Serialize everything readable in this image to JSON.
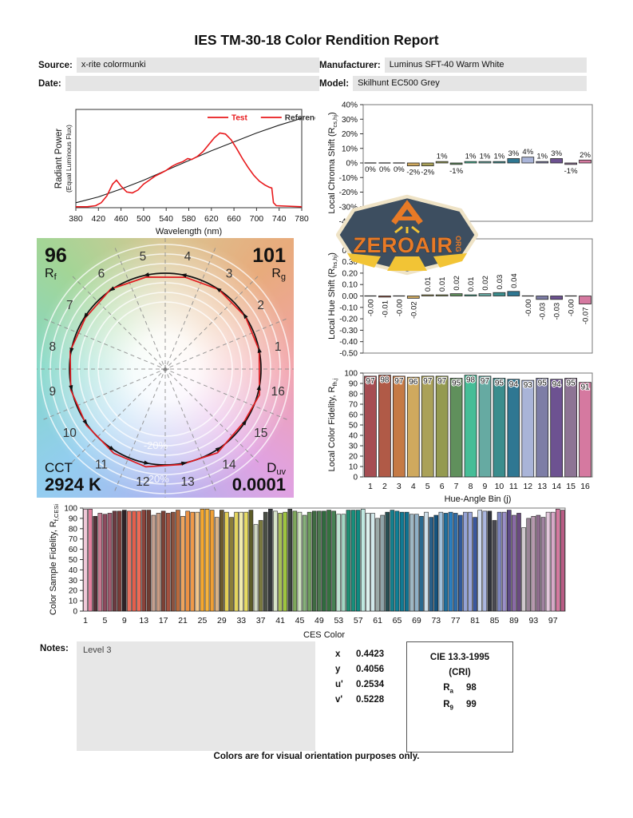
{
  "title": "IES TM-30-18 Color Rendition Report",
  "header": {
    "source_label": "Source:",
    "source_value": "x-rite colormunki",
    "date_label": "Date:",
    "date_value": "",
    "manufacturer_label": "Manufacturer:",
    "manufacturer_value": "Luminus SFT-40 Warm White",
    "model_label": "Model:",
    "model_value": "Skilhunt EC500 Grey"
  },
  "notes": {
    "label": "Notes:",
    "value": "Level 3"
  },
  "chromaticity": {
    "rows": [
      {
        "label": "x",
        "value": "0.4423"
      },
      {
        "label": "y",
        "value": "0.4056"
      },
      {
        "label": "u'",
        "value": "0.2534"
      },
      {
        "label": "v'",
        "value": "0.5228"
      }
    ]
  },
  "cri_box": {
    "title": "CIE 13.3-1995",
    "subtitle": "(CRI)",
    "rows": [
      {
        "label": "R",
        "sub": "a",
        "value": "98"
      },
      {
        "label": "R",
        "sub": "9",
        "value": "99"
      }
    ]
  },
  "footer": "Colors are for visual orientation purposes only.",
  "logo": {
    "text": "ZEROAIR",
    "suffix": "ORG",
    "colors": {
      "badge": "#3d4e60",
      "border": "#efe3c6",
      "orange": "#e87a26",
      "yellow": "#f2c435"
    }
  },
  "palette": {
    "bin_colors": [
      "#a64d52",
      "#b05a47",
      "#c57a45",
      "#cfa95e",
      "#aaa158",
      "#949a50",
      "#60905c",
      "#46bd97",
      "#66aaa2",
      "#3b8d8d",
      "#2f7792",
      "#a9b4d8",
      "#7d7da6",
      "#6d5291",
      "#8d7494",
      "#d579a0"
    ]
  },
  "chart_data": [
    {
      "id": "spd",
      "type": "line",
      "xlabel": "Wavelength (nm)",
      "ylabel_line1": "Radiant Power",
      "ylabel_line2": "(Equal Luminous Flux)",
      "xlim": [
        380,
        780
      ],
      "xticks": [
        380,
        420,
        460,
        500,
        540,
        580,
        620,
        660,
        700,
        740,
        780
      ],
      "legend": [
        {
          "label": "Test",
          "color": "#e8191c",
          "text_color": "#e8191c"
        },
        {
          "label": "Reference",
          "color": "#e8191c",
          "text_color": "#333333"
        }
      ],
      "series": [
        {
          "name": "Reference",
          "color": "#1a1a1a",
          "x": [
            380,
            420,
            460,
            500,
            540,
            580,
            620,
            660,
            700,
            740,
            780
          ],
          "y": [
            0.05,
            0.11,
            0.19,
            0.28,
            0.38,
            0.48,
            0.58,
            0.67,
            0.76,
            0.84,
            0.91
          ]
        },
        {
          "name": "Test",
          "color": "#e8191c",
          "x": [
            380,
            400,
            415,
            425,
            435,
            445,
            452,
            460,
            470,
            480,
            490,
            500,
            510,
            520,
            530,
            540,
            550,
            560,
            570,
            578,
            585,
            595,
            605,
            615,
            625,
            635,
            645,
            655,
            665,
            675,
            685,
            695,
            705,
            715,
            722,
            727,
            730,
            735,
            780
          ],
          "y": [
            0.01,
            0.01,
            0.02,
            0.05,
            0.12,
            0.24,
            0.28,
            0.22,
            0.16,
            0.15,
            0.18,
            0.24,
            0.28,
            0.32,
            0.35,
            0.38,
            0.42,
            0.45,
            0.47,
            0.5,
            0.49,
            0.52,
            0.57,
            0.64,
            0.71,
            0.76,
            0.75,
            0.69,
            0.6,
            0.5,
            0.41,
            0.33,
            0.27,
            0.23,
            0.21,
            0.2,
            0.05,
            0.02,
            0.01
          ]
        }
      ]
    },
    {
      "id": "chroma_shift",
      "type": "bar",
      "ylabel": {
        "pre": "Local Chroma Shift (R",
        "sub": "cs,hj",
        "post": ")"
      },
      "categories": [
        1,
        2,
        3,
        4,
        5,
        6,
        7,
        8,
        9,
        10,
        11,
        12,
        13,
        14,
        15,
        16
      ],
      "values": [
        0,
        0,
        0,
        -2,
        -2,
        1,
        -1,
        1,
        1,
        1,
        3,
        4,
        1,
        3,
        -1,
        2
      ],
      "labels": [
        "0%",
        "0%",
        "0%",
        "-2%",
        "-2%",
        "1%",
        "-1%",
        "1%",
        "1%",
        "1%",
        "3%",
        "4%",
        "1%",
        "3%",
        "-1%",
        "2%"
      ],
      "ylim": [
        -40,
        40
      ],
      "yticks": [
        "40%",
        "30%",
        "20%",
        "10%",
        "0%",
        "-10%",
        "-20%",
        "-30%",
        "-40%"
      ]
    },
    {
      "id": "hue_shift",
      "type": "bar",
      "ylabel": {
        "pre": "Local Hue Shift (R",
        "sub": "hs,hj",
        "post": ")"
      },
      "categories": [
        1,
        2,
        3,
        4,
        5,
        6,
        7,
        8,
        9,
        10,
        11,
        12,
        13,
        14,
        15,
        16
      ],
      "values": [
        0,
        -0.01,
        0,
        -0.02,
        0.01,
        0.01,
        0.02,
        0.01,
        0.02,
        0.03,
        0.04,
        0,
        -0.03,
        -0.03,
        0,
        -0.07
      ],
      "labels": [
        "-0.00",
        "-0.01",
        "-0.00",
        "-0.02",
        "0.01",
        "0.01",
        "0.02",
        "0.01",
        "0.02",
        "0.03",
        "0.04",
        "-0.00",
        "-0.03",
        "-0.03",
        "-0.00",
        "-0.07"
      ],
      "ylim": [
        -0.5,
        0.5
      ],
      "yticks": [
        "0.50",
        "0.40",
        "0.30",
        "0.20",
        "0.10",
        "0.00",
        "-0.10",
        "-0.20",
        "-0.30",
        "-0.40",
        "-0.50"
      ]
    },
    {
      "id": "local_fidelity",
      "type": "bar",
      "ylabel": {
        "pre": "Local Color Fidelity, R",
        "sub": "fh,j",
        "post": ""
      },
      "xlabel": "Hue-Angle Bin (j)",
      "categories": [
        1,
        2,
        3,
        4,
        5,
        6,
        7,
        8,
        9,
        10,
        11,
        12,
        13,
        14,
        15,
        16
      ],
      "values": [
        97,
        98,
        97,
        96,
        97,
        97,
        95,
        98,
        97,
        95,
        94,
        93,
        95,
        94,
        95,
        91
      ],
      "ylim": [
        0,
        100
      ],
      "yticks": [
        "100",
        "90",
        "80",
        "70",
        "60",
        "50",
        "40",
        "30",
        "20",
        "10",
        "0"
      ]
    },
    {
      "id": "ces_fidelity",
      "type": "bar",
      "ylabel": {
        "pre": "Color Sample Fidelity, R",
        "sub": "f,CESi",
        "post": ""
      },
      "xlabel": "CES Color",
      "xticks": [
        1,
        5,
        9,
        13,
        17,
        21,
        25,
        29,
        33,
        37,
        41,
        45,
        49,
        53,
        57,
        61,
        65,
        69,
        73,
        77,
        81,
        85,
        89,
        93,
        97
      ],
      "ylim": [
        0,
        100
      ],
      "yticks": [
        "100",
        "90",
        "80",
        "70",
        "60",
        "50",
        "40",
        "30",
        "20",
        "10",
        "0"
      ],
      "values": [
        99,
        99,
        92,
        95,
        94,
        95,
        97,
        97,
        98,
        97,
        97,
        97,
        98,
        98,
        93,
        95,
        97,
        95,
        96,
        98,
        92,
        97,
        96,
        96,
        99,
        99,
        98,
        91,
        98,
        96,
        91,
        96,
        96,
        96,
        98,
        84,
        88,
        96,
        99,
        97,
        95,
        96,
        99,
        97,
        96,
        93,
        96,
        97,
        97,
        97,
        98,
        97,
        94,
        94,
        98,
        98,
        98,
        99,
        95,
        95,
        90,
        93,
        96,
        98,
        97,
        96,
        96,
        94,
        94,
        92,
        96,
        91,
        93,
        96,
        95,
        96,
        95,
        93,
        96,
        96,
        91,
        98,
        97,
        97,
        88,
        96,
        96,
        98,
        93,
        95,
        81,
        90,
        92,
        93,
        91,
        96,
        96,
        99,
        98
      ],
      "colors": [
        "#f0c9d8",
        "#e2809e",
        "#523239",
        "#c57a90",
        "#8d4a5e",
        "#a05a6e",
        "#6b3a40",
        "#7a3c38",
        "#302226",
        "#e8705e",
        "#e55f4c",
        "#ef6a55",
        "#8a423a",
        "#6f3c32",
        "#c3a090",
        "#c79a82",
        "#7c4136",
        "#a4513f",
        "#8a5240",
        "#b96a3c",
        "#eda45e",
        "#ec9143",
        "#f09a4a",
        "#f4c78a",
        "#f5a830",
        "#f7b33c",
        "#ef9f35",
        "#d9b285",
        "#6d5a2e",
        "#e5cf56",
        "#8a7d3a",
        "#e3d45e",
        "#f2ecb0",
        "#e8dc62",
        "#5d5c28",
        "#cfd6c2",
        "#7b7a40",
        "#4a4f46",
        "#34383a",
        "#d6e3c8",
        "#a8bf59",
        "#9ec43e",
        "#3d4440",
        "#7da65c",
        "#cfe3c0",
        "#86b07a",
        "#6f9e5e",
        "#3f6b42",
        "#4e7a50",
        "#2f6b3e",
        "#35713f",
        "#468153",
        "#bfe3d2",
        "#a5d8c4",
        "#1f8e73",
        "#17907c",
        "#0f8a80",
        "#bfe8e0",
        "#ddf0ee",
        "#d2e8ea",
        "#9aa8a6",
        "#8fa3a8",
        "#274e52",
        "#15808e",
        "#0e7f96",
        "#117a94",
        "#0f7291",
        "#9fb8c4",
        "#8fb0c6",
        "#2b6a8f",
        "#cfe0ea",
        "#2a5f88",
        "#15537e",
        "#9fc0dc",
        "#1f6f9e",
        "#2b7fc0",
        "#2f6da8",
        "#30599a",
        "#95a3d6",
        "#9aa6dc",
        "#3a569e",
        "#ccd9f0",
        "#aab6e0",
        "#30343c",
        "#4a4a52",
        "#7d85c0",
        "#9a8fc8",
        "#5d4a86",
        "#8a6aa6",
        "#6a4a80",
        "#cfc8cc",
        "#9a8496",
        "#b89ab0",
        "#8f6d8e",
        "#a083a0",
        "#e3c8dc",
        "#d8a8c8",
        "#d4789e",
        "#b85c84"
      ]
    },
    {
      "id": "color_vector",
      "type": "polar",
      "rf_value": "96",
      "rf_label_main": "R",
      "rf_label_sub": "f",
      "rg_value": "101",
      "rg_label_main": "R",
      "rg_label_sub": "g",
      "cct_label": "CCT",
      "cct_value": "2924 K",
      "duv_label_main": "D",
      "duv_label_sub": "uv",
      "duv_value": "0.0001",
      "bins": [
        1,
        2,
        3,
        4,
        5,
        6,
        7,
        8,
        9,
        10,
        11,
        12,
        13,
        14,
        15,
        16
      ],
      "chroma_shift_pct": [
        0,
        0,
        0,
        -2,
        -2,
        1,
        -1,
        1,
        1,
        1,
        3,
        4,
        1,
        3,
        -1,
        2
      ],
      "hue_shift": [
        0,
        -0.01,
        0,
        -0.02,
        0.01,
        0.01,
        0.02,
        0.01,
        0.02,
        0.03,
        0.04,
        0,
        -0.03,
        -0.03,
        0,
        -0.07
      ],
      "ring_labels": {
        "inner": "-20%",
        "outer": "+20%"
      }
    }
  ]
}
